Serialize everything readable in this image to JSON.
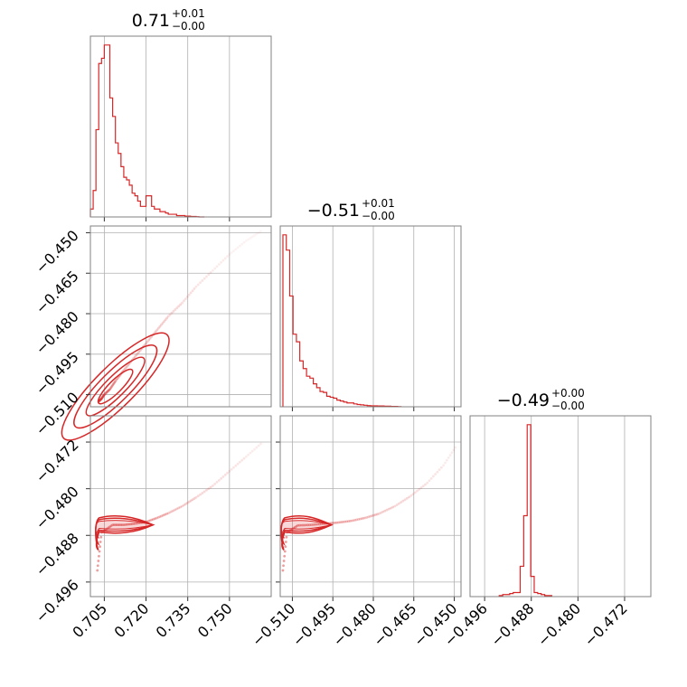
{
  "chart_data": {
    "type": "corner",
    "color": "#d62728",
    "parameters": [
      {
        "title": "0.71",
        "upper": "+0.01",
        "lower": "−0.00",
        "ticks": [
          "0.705",
          "0.720",
          "0.735",
          "0.750"
        ],
        "tick_values": [
          0.705,
          0.72,
          0.735,
          0.75
        ],
        "range": [
          0.7,
          0.765
        ]
      },
      {
        "title": "−0.51",
        "upper": "+0.01",
        "lower": "−0.00",
        "ticks": [
          "−0.510",
          "−0.495",
          "−0.480",
          "−0.465",
          "−0.450"
        ],
        "tick_values": [
          -0.51,
          -0.495,
          -0.48,
          -0.465,
          -0.45
        ],
        "range": [
          -0.5145,
          -0.4475
        ]
      },
      {
        "title": "−0.49",
        "upper": "+0.00",
        "lower": "−0.00",
        "ticks": [
          "−0.496",
          "−0.488",
          "−0.480",
          "−0.472"
        ],
        "tick_values": [
          -0.496,
          -0.488,
          -0.48,
          -0.472
        ],
        "range": [
          -0.4985,
          -0.4675
        ]
      }
    ],
    "histograms": [
      {
        "param": 0,
        "edges_start": 0.7,
        "bin_width": 0.001,
        "counts": [
          0.03,
          0.1,
          0.33,
          0.58,
          0.6,
          0.65,
          0.65,
          0.45,
          0.38,
          0.28,
          0.24,
          0.19,
          0.15,
          0.14,
          0.12,
          0.09,
          0.08,
          0.06,
          0.04,
          0.04,
          0.08,
          0.08,
          0.04,
          0.03,
          0.03,
          0.02,
          0.02,
          0.015,
          0.01,
          0.01,
          0.01,
          0.005,
          0.005,
          0.005,
          0.003,
          0.003,
          0.002,
          0.002,
          0.001,
          0,
          0
        ]
      },
      {
        "param": 1,
        "edges_start": -0.5135,
        "bin_width": 0.00125,
        "counts": [
          0.9,
          0.82,
          0.58,
          0.38,
          0.34,
          0.24,
          0.2,
          0.16,
          0.15,
          0.12,
          0.1,
          0.08,
          0.075,
          0.055,
          0.05,
          0.045,
          0.035,
          0.03,
          0.025,
          0.02,
          0.02,
          0.015,
          0.012,
          0.01,
          0.008,
          0.006,
          0.005,
          0.005,
          0.004,
          0.004,
          0.003,
          0.003,
          0.002,
          0.002,
          0.001
        ]
      },
      {
        "param": 2,
        "edges_start": -0.4935,
        "bin_width": 0.0006,
        "counts": [
          0.005,
          0.01,
          0.01,
          0.015,
          0.02,
          0.02,
          0.15,
          0.4,
          0.85,
          0.1,
          0.02,
          0.015,
          0.01,
          0.005,
          0.005
        ]
      }
    ],
    "scatter_samples": {
      "p1_vs_p0": {
        "x": [
          0.703,
          0.704,
          0.705,
          0.707,
          0.709,
          0.712,
          0.716,
          0.72,
          0.724,
          0.728,
          0.733,
          0.738,
          0.744,
          0.75,
          0.756,
          0.762
        ],
        "y": [
          -0.5125,
          -0.5115,
          -0.51,
          -0.508,
          -0.505,
          -0.501,
          -0.496,
          -0.491,
          -0.486,
          -0.481,
          -0.476,
          -0.47,
          -0.464,
          -0.458,
          -0.453,
          -0.449
        ]
      },
      "p2_vs_p0": {
        "x": [
          0.7025,
          0.704,
          0.708,
          0.712,
          0.716,
          0.72,
          0.724,
          0.728,
          0.733,
          0.738,
          0.744,
          0.75,
          0.756,
          0.762
        ],
        "y": [
          -0.494,
          -0.4875,
          -0.4862,
          -0.4862,
          -0.486,
          -0.4857,
          -0.485,
          -0.4842,
          -0.483,
          -0.4815,
          -0.4795,
          -0.477,
          -0.4745,
          -0.472
        ]
      },
      "p2_vs_p1": {
        "x": [
          -0.5135,
          -0.512,
          -0.508,
          -0.503,
          -0.498,
          -0.493,
          -0.488,
          -0.483,
          -0.478,
          -0.472,
          -0.466,
          -0.46,
          -0.454,
          -0.449
        ],
        "y": [
          -0.494,
          -0.4875,
          -0.4863,
          -0.4862,
          -0.486,
          -0.4858,
          -0.4855,
          -0.485,
          -0.4843,
          -0.483,
          -0.4812,
          -0.479,
          -0.476,
          -0.4725
        ]
      }
    },
    "contours": {
      "p1_vs_p0": {
        "center": [
          0.709,
          -0.507
        ],
        "slope": 1.03,
        "widths": [
          0.0025,
          0.004,
          0.006,
          0.008
        ]
      },
      "p2_vs_p0": {
        "center": [
          0.712,
          -0.4862
        ],
        "widths": [
          0.0006,
          0.0009,
          0.0012
        ]
      },
      "p2_vs_p1": {
        "center": [
          -0.505,
          -0.4862
        ],
        "widths": [
          0.0006,
          0.0009,
          0.0012
        ]
      }
    },
    "grid": true
  }
}
